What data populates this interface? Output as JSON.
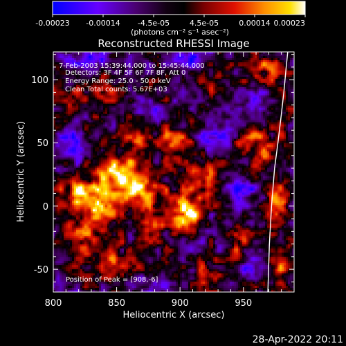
{
  "chart_data": {
    "type": "heatmap",
    "title": "Reconstructed RHESSI Image",
    "xlabel": "Heliocentric X (arcsec)",
    "ylabel": "Heliocentric Y (arcsec)",
    "xlim": [
      800,
      990
    ],
    "ylim": [
      -68,
      122
    ],
    "x_ticks": [
      800,
      850,
      900,
      950
    ],
    "y_ticks": [
      -50,
      0,
      50,
      100
    ],
    "colorbar": {
      "tick_labels": [
        "-0.00023",
        "-0.00014",
        "-4.5e-05",
        "4.5e-05",
        "0.00014",
        "0.00023"
      ],
      "unit_label": "(photons cm⁻² s⁻¹ asec⁻²)",
      "range": [
        -0.00023,
        0.00023
      ]
    },
    "annotations": {
      "time_range": "7-Feb-2003 15:39:44.000 to 15:45:44.000",
      "detectors": "Detectors: 3F 4F 5F 6F 7F 8F, Att 0",
      "energy_range": "Energy Range: 25.0 - 50.0 keV",
      "clean_counts": "Clean    Total counts: 5.67E+03",
      "peak": "Position of Peak = [908,-6]"
    },
    "limb": {
      "x": [
        985.0,
        983.8,
        981.9,
        979.6,
        977.2,
        974.6,
        972.2,
        970.5,
        969.3
      ],
      "y": [
        122,
        110,
        90,
        70,
        50,
        30,
        0,
        -30,
        -68
      ]
    },
    "blobs": [
      {
        "x": 840,
        "y": 5,
        "sx": 9,
        "sy": 14,
        "a": 1.0
      },
      {
        "x": 818,
        "y": 12,
        "sx": 8,
        "sy": 10,
        "a": 0.8
      },
      {
        "x": 855,
        "y": 28,
        "sx": 10,
        "sy": 10,
        "a": 0.75
      },
      {
        "x": 870,
        "y": 12,
        "sx": 12,
        "sy": 12,
        "a": 0.85
      },
      {
        "x": 905,
        "y": -6,
        "sx": 9,
        "sy": 10,
        "a": 1.1
      },
      {
        "x": 915,
        "y": 22,
        "sx": 9,
        "sy": 9,
        "a": 0.7
      },
      {
        "x": 893,
        "y": 50,
        "sx": 10,
        "sy": 8,
        "a": 0.55
      },
      {
        "x": 865,
        "y": 50,
        "sx": 9,
        "sy": 7,
        "a": 0.55
      },
      {
        "x": 820,
        "y": -22,
        "sx": 10,
        "sy": 9,
        "a": 0.7
      },
      {
        "x": 845,
        "y": -42,
        "sx": 14,
        "sy": 7,
        "a": 0.55
      },
      {
        "x": 875,
        "y": -18,
        "sx": 8,
        "sy": 8,
        "a": 0.55
      },
      {
        "x": 978,
        "y": -45,
        "sx": 7,
        "sy": 10,
        "a": 0.7
      },
      {
        "x": 978,
        "y": 5,
        "sx": 7,
        "sy": 9,
        "a": 0.6
      },
      {
        "x": 970,
        "y": 40,
        "sx": 9,
        "sy": 10,
        "a": 0.6
      },
      {
        "x": 945,
        "y": -25,
        "sx": 8,
        "sy": 8,
        "a": 0.55
      },
      {
        "x": 955,
        "y": 55,
        "sx": 8,
        "sy": 8,
        "a": 0.45
      },
      {
        "x": 815,
        "y": 85,
        "sx": 9,
        "sy": 9,
        "a": 0.5
      },
      {
        "x": 840,
        "y": 95,
        "sx": 9,
        "sy": 8,
        "a": 0.45
      },
      {
        "x": 930,
        "y": 95,
        "sx": 8,
        "sy": 7,
        "a": 0.35
      },
      {
        "x": 965,
        "y": 110,
        "sx": 10,
        "sy": 8,
        "a": 0.5
      },
      {
        "x": 925,
        "y": -55,
        "sx": 9,
        "sy": 6,
        "a": 0.4
      },
      {
        "x": 880,
        "y": 75,
        "sx": 8,
        "sy": 7,
        "a": -0.45
      },
      {
        "x": 930,
        "y": 60,
        "sx": 10,
        "sy": 10,
        "a": -0.5
      },
      {
        "x": 815,
        "y": 50,
        "sx": 9,
        "sy": 10,
        "a": -0.55
      },
      {
        "x": 830,
        "y": 115,
        "sx": 14,
        "sy": 6,
        "a": -0.6
      },
      {
        "x": 905,
        "y": 115,
        "sx": 10,
        "sy": 6,
        "a": -0.5
      },
      {
        "x": 950,
        "y": 10,
        "sx": 8,
        "sy": 10,
        "a": -0.6
      },
      {
        "x": 955,
        "y": -50,
        "sx": 8,
        "sy": 8,
        "a": -0.5
      },
      {
        "x": 960,
        "y": 85,
        "sx": 8,
        "sy": 7,
        "a": -0.55
      },
      {
        "x": 935,
        "y": -15,
        "sx": 7,
        "sy": 8,
        "a": -0.4
      },
      {
        "x": 880,
        "y": -62,
        "sx": 10,
        "sy": 5,
        "a": -0.4
      },
      {
        "x": 860,
        "y": -5,
        "sx": 6,
        "sy": 6,
        "a": -0.35
      }
    ]
  },
  "footer": {
    "timestamp": "28-Apr-2022 20:11"
  },
  "colors": {
    "background": "#000000",
    "foreground": "#ffffff",
    "colormap": [
      "#0000ff",
      "#7a00ff",
      "#400040",
      "#000000",
      "#9a0000",
      "#ff4a00",
      "#ffc800",
      "#ffffff"
    ]
  }
}
